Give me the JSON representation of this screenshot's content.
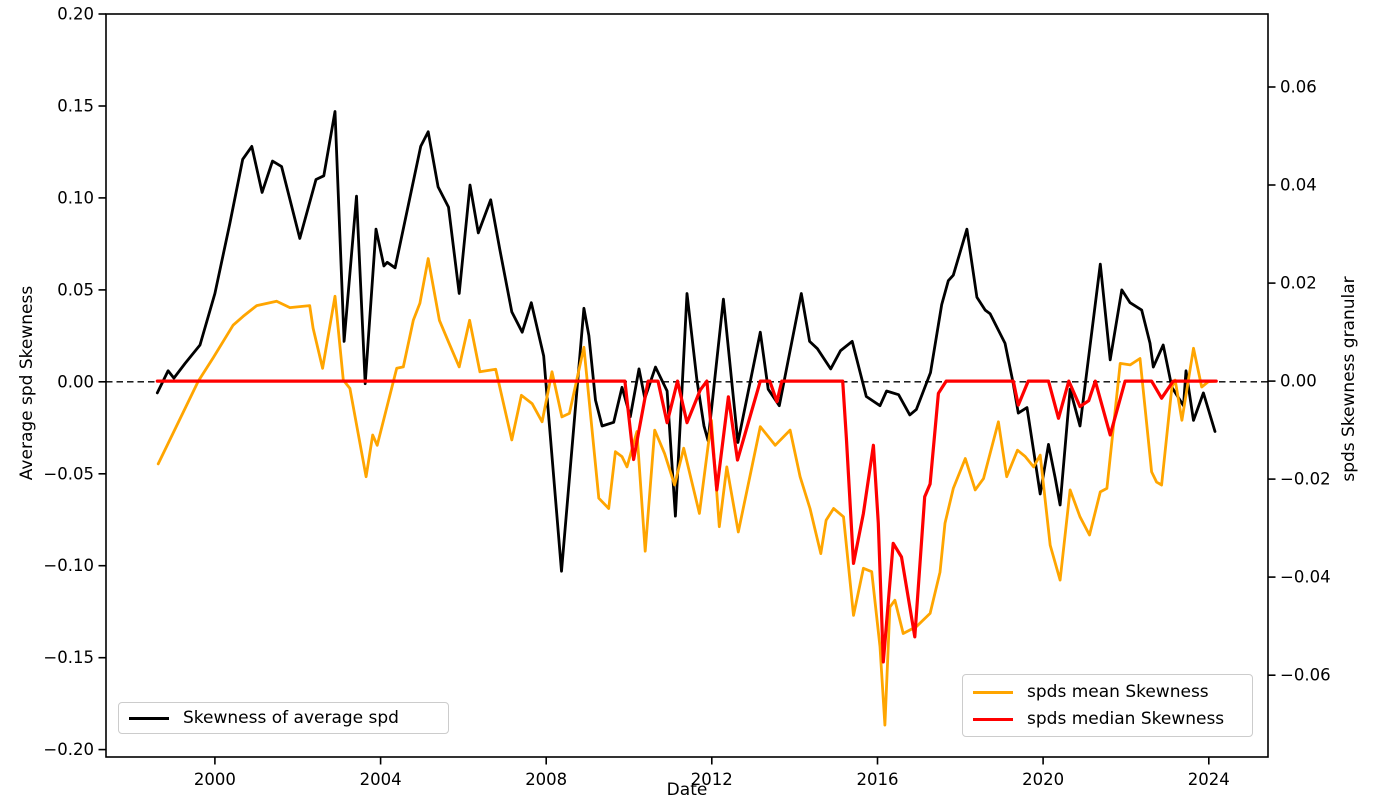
{
  "chart_data": {
    "type": "line",
    "title": "",
    "xlabel": "Date",
    "ylabel_left": "Average spd Skewness",
    "ylabel_right": "spds Skewness granular",
    "xlim": [
      1997.37,
      2025.43
    ],
    "ylim_left": [
      -0.204,
      0.2
    ],
    "ylim_right": [
      -0.0767,
      0.0749
    ],
    "grid": false,
    "background": "#ffffff",
    "spine_color": "#000000",
    "zero_line": {
      "value": 0,
      "style": "dashed",
      "color": "#000000"
    },
    "x_ticks": [
      {
        "v": 2000,
        "label": "2000"
      },
      {
        "v": 2004,
        "label": "2004"
      },
      {
        "v": 2008,
        "label": "2008"
      },
      {
        "v": 2012,
        "label": "2012"
      },
      {
        "v": 2016,
        "label": "2016"
      },
      {
        "v": 2020,
        "label": "2020"
      },
      {
        "v": 2024,
        "label": "2024"
      }
    ],
    "y_ticks_left": [
      {
        "v": 0.2,
        "label": "0.20"
      },
      {
        "v": 0.15,
        "label": "0.15"
      },
      {
        "v": 0.1,
        "label": "0.10"
      },
      {
        "v": 0.05,
        "label": "0.05"
      },
      {
        "v": 0.0,
        "label": "0.00"
      },
      {
        "v": -0.05,
        "label": "−0.05"
      },
      {
        "v": -0.1,
        "label": "−0.10"
      },
      {
        "v": -0.15,
        "label": "−0.15"
      },
      {
        "v": -0.2,
        "label": "−0.20"
      }
    ],
    "y_ticks_right": [
      {
        "v": 0.06,
        "label": "0.06"
      },
      {
        "v": 0.04,
        "label": "0.04"
      },
      {
        "v": 0.02,
        "label": "0.02"
      },
      {
        "v": 0.0,
        "label": "0.00"
      },
      {
        "v": -0.02,
        "label": "−0.02"
      },
      {
        "v": -0.04,
        "label": "−0.04"
      },
      {
        "v": -0.06,
        "label": "−0.06"
      }
    ],
    "series": [
      {
        "name": "Skewness of average spd",
        "color": "#000000",
        "axis": "left",
        "linewidth": 2.8,
        "points": [
          [
            1998.61,
            -0.006
          ],
          [
            1998.87,
            0.006
          ],
          [
            1999.01,
            0.002
          ],
          [
            1999.28,
            0.01
          ],
          [
            1999.64,
            0.02
          ],
          [
            2000.0,
            0.048
          ],
          [
            2000.36,
            0.086
          ],
          [
            2000.67,
            0.121
          ],
          [
            2000.89,
            0.128
          ],
          [
            2001.14,
            0.103
          ],
          [
            2001.39,
            0.12
          ],
          [
            2001.61,
            0.117
          ],
          [
            2002.05,
            0.078
          ],
          [
            2002.44,
            0.11
          ],
          [
            2002.63,
            0.112
          ],
          [
            2002.9,
            0.147
          ],
          [
            2003.12,
            0.022
          ],
          [
            2003.42,
            0.101
          ],
          [
            2003.63,
            -0.001
          ],
          [
            2003.89,
            0.083
          ],
          [
            2004.08,
            0.063
          ],
          [
            2004.16,
            0.065
          ],
          [
            2004.35,
            0.062
          ],
          [
            2004.97,
            0.128
          ],
          [
            2005.15,
            0.136
          ],
          [
            2005.39,
            0.106
          ],
          [
            2005.64,
            0.095
          ],
          [
            2005.9,
            0.048
          ],
          [
            2006.16,
            0.107
          ],
          [
            2006.36,
            0.081
          ],
          [
            2006.66,
            0.099
          ],
          [
            2006.88,
            0.072
          ],
          [
            2007.17,
            0.038
          ],
          [
            2007.42,
            0.027
          ],
          [
            2007.64,
            0.043
          ],
          [
            2007.94,
            0.014
          ],
          [
            2008.37,
            -0.103
          ],
          [
            2008.91,
            0.04
          ],
          [
            2009.03,
            0.025
          ],
          [
            2009.19,
            -0.01
          ],
          [
            2009.35,
            -0.024
          ],
          [
            2009.63,
            -0.022
          ],
          [
            2009.83,
            -0.003
          ],
          [
            2010.03,
            -0.019
          ],
          [
            2010.24,
            0.007
          ],
          [
            2010.38,
            -0.009
          ],
          [
            2010.64,
            0.008
          ],
          [
            2010.92,
            -0.005
          ],
          [
            2011.12,
            -0.073
          ],
          [
            2011.4,
            0.048
          ],
          [
            2011.64,
            0.001
          ],
          [
            2011.81,
            -0.024
          ],
          [
            2011.91,
            -0.032
          ],
          [
            2012.28,
            0.045
          ],
          [
            2012.63,
            -0.033
          ],
          [
            2013.17,
            0.027
          ],
          [
            2013.36,
            -0.004
          ],
          [
            2013.63,
            -0.013
          ],
          [
            2014.16,
            0.048
          ],
          [
            2014.36,
            0.022
          ],
          [
            2014.55,
            0.018
          ],
          [
            2014.87,
            0.007
          ],
          [
            2015.11,
            0.017
          ],
          [
            2015.39,
            0.022
          ],
          [
            2015.73,
            -0.008
          ],
          [
            2016.06,
            -0.013
          ],
          [
            2016.22,
            -0.005
          ],
          [
            2016.51,
            -0.007
          ],
          [
            2016.78,
            -0.018
          ],
          [
            2016.94,
            -0.015
          ],
          [
            2017.28,
            0.005
          ],
          [
            2017.55,
            0.042
          ],
          [
            2017.71,
            0.055
          ],
          [
            2017.83,
            0.058
          ],
          [
            2018.16,
            0.083
          ],
          [
            2018.4,
            0.046
          ],
          [
            2018.6,
            0.039
          ],
          [
            2018.72,
            0.037
          ],
          [
            2019.08,
            0.021
          ],
          [
            2019.27,
            0.0
          ],
          [
            2019.4,
            -0.017
          ],
          [
            2019.61,
            -0.014
          ],
          [
            2019.93,
            -0.061
          ],
          [
            2020.13,
            -0.034
          ],
          [
            2020.29,
            -0.052
          ],
          [
            2020.41,
            -0.067
          ],
          [
            2020.65,
            -0.004
          ],
          [
            2020.89,
            -0.024
          ],
          [
            2021.38,
            0.064
          ],
          [
            2021.62,
            0.012
          ],
          [
            2021.9,
            0.05
          ],
          [
            2022.1,
            0.043
          ],
          [
            2022.38,
            0.039
          ],
          [
            2022.58,
            0.021
          ],
          [
            2022.66,
            0.008
          ],
          [
            2022.9,
            0.02
          ],
          [
            2023.11,
            -0.003
          ],
          [
            2023.39,
            -0.013
          ],
          [
            2023.45,
            0.006
          ],
          [
            2023.63,
            -0.021
          ],
          [
            2023.87,
            -0.006
          ],
          [
            2024.15,
            -0.027
          ]
        ]
      },
      {
        "name": "spds mean Skewness",
        "color": "#FFA500",
        "axis": "right",
        "linewidth": 2.8,
        "points": [
          [
            1998.63,
            -0.0169
          ],
          [
            1999.6,
            0.0
          ],
          [
            1999.96,
            0.0048
          ],
          [
            2000.44,
            0.0114
          ],
          [
            2000.68,
            0.0132
          ],
          [
            2001.01,
            0.0154
          ],
          [
            2001.49,
            0.0163
          ],
          [
            2001.81,
            0.015
          ],
          [
            2002.29,
            0.0154
          ],
          [
            2002.37,
            0.0108
          ],
          [
            2002.6,
            0.0026
          ],
          [
            2002.9,
            0.0173
          ],
          [
            2003.1,
            0.0002
          ],
          [
            2003.26,
            -0.0015
          ],
          [
            2003.65,
            -0.0195
          ],
          [
            2003.81,
            -0.011
          ],
          [
            2003.92,
            -0.0131
          ],
          [
            2004.39,
            0.0026
          ],
          [
            2004.55,
            0.0029
          ],
          [
            2004.79,
            0.0124
          ],
          [
            2004.95,
            0.0159
          ],
          [
            2005.15,
            0.025
          ],
          [
            2005.42,
            0.0124
          ],
          [
            2005.64,
            0.008
          ],
          [
            2005.9,
            0.0029
          ],
          [
            2006.15,
            0.0124
          ],
          [
            2006.4,
            0.0019
          ],
          [
            2006.78,
            0.0024
          ],
          [
            2007.17,
            -0.012
          ],
          [
            2007.4,
            -0.0029
          ],
          [
            2007.66,
            -0.0046
          ],
          [
            2007.9,
            -0.0083
          ],
          [
            2008.14,
            0.0019
          ],
          [
            2008.38,
            -0.0073
          ],
          [
            2008.56,
            -0.0066
          ],
          [
            2008.91,
            0.0069
          ],
          [
            2009.27,
            -0.0239
          ],
          [
            2009.51,
            -0.026
          ],
          [
            2009.67,
            -0.0144
          ],
          [
            2009.83,
            -0.0154
          ],
          [
            2009.95,
            -0.0175
          ],
          [
            2010.19,
            -0.0103
          ],
          [
            2010.39,
            -0.0347
          ],
          [
            2010.62,
            -0.01
          ],
          [
            2010.86,
            -0.0148
          ],
          [
            2011.1,
            -0.0212
          ],
          [
            2011.32,
            -0.0137
          ],
          [
            2011.7,
            -0.027
          ],
          [
            2011.99,
            -0.008
          ],
          [
            2012.18,
            -0.0297
          ],
          [
            2012.36,
            -0.0175
          ],
          [
            2012.64,
            -0.0308
          ],
          [
            2013.17,
            -0.0093
          ],
          [
            2013.53,
            -0.0131
          ],
          [
            2013.89,
            -0.01
          ],
          [
            2014.13,
            -0.0195
          ],
          [
            2014.37,
            -0.026
          ],
          [
            2014.63,
            -0.0352
          ],
          [
            2014.76,
            -0.0284
          ],
          [
            2014.94,
            -0.026
          ],
          [
            2015.18,
            -0.0277
          ],
          [
            2015.42,
            -0.0478
          ],
          [
            2015.66,
            -0.0382
          ],
          [
            2015.86,
            -0.0389
          ],
          [
            2016.06,
            -0.0542
          ],
          [
            2016.18,
            -0.0702
          ],
          [
            2016.3,
            -0.0461
          ],
          [
            2016.42,
            -0.0447
          ],
          [
            2016.62,
            -0.0515
          ],
          [
            2016.94,
            -0.0501
          ],
          [
            2017.27,
            -0.0474
          ],
          [
            2017.51,
            -0.039
          ],
          [
            2017.63,
            -0.029
          ],
          [
            2017.83,
            -0.0219
          ],
          [
            2018.12,
            -0.0158
          ],
          [
            2018.36,
            -0.0222
          ],
          [
            2018.56,
            -0.0199
          ],
          [
            2018.92,
            -0.0083
          ],
          [
            2019.12,
            -0.0195
          ],
          [
            2019.38,
            -0.0141
          ],
          [
            2019.57,
            -0.0154
          ],
          [
            2019.77,
            -0.0175
          ],
          [
            2019.93,
            -0.0151
          ],
          [
            2020.17,
            -0.0335
          ],
          [
            2020.41,
            -0.0406
          ],
          [
            2020.65,
            -0.0222
          ],
          [
            2020.89,
            -0.0277
          ],
          [
            2021.12,
            -0.0314
          ],
          [
            2021.38,
            -0.0226
          ],
          [
            2021.54,
            -0.0219
          ],
          [
            2021.86,
            0.0036
          ],
          [
            2022.1,
            0.0033
          ],
          [
            2022.34,
            0.0046
          ],
          [
            2022.62,
            -0.0185
          ],
          [
            2022.74,
            -0.0206
          ],
          [
            2022.86,
            -0.0212
          ],
          [
            2023.11,
            -0.0012
          ],
          [
            2023.19,
            0.0002
          ],
          [
            2023.35,
            -0.008
          ],
          [
            2023.63,
            0.0067
          ],
          [
            2023.83,
            -0.0012
          ],
          [
            2023.99,
            -0.0001
          ],
          [
            2024.18,
            0.0
          ]
        ]
      },
      {
        "name": "spds median Skewness",
        "color": "#FF0000",
        "axis": "right",
        "linewidth": 3.2,
        "points": [
          [
            1998.61,
            0.0
          ],
          [
            2009.9,
            0.0
          ],
          [
            2010.11,
            -0.016
          ],
          [
            2010.46,
            0.0
          ],
          [
            2010.7,
            0.0
          ],
          [
            2010.92,
            -0.0085
          ],
          [
            2011.17,
            0.0
          ],
          [
            2011.4,
            -0.0085
          ],
          [
            2011.72,
            -0.0018
          ],
          [
            2011.88,
            0.0
          ],
          [
            2012.12,
            -0.0222
          ],
          [
            2012.4,
            -0.0032
          ],
          [
            2012.62,
            -0.0161
          ],
          [
            2013.17,
            0.0
          ],
          [
            2013.4,
            0.0
          ],
          [
            2013.57,
            -0.0042
          ],
          [
            2013.69,
            0.0
          ],
          [
            2015.16,
            0.0
          ],
          [
            2015.25,
            -0.0117
          ],
          [
            2015.42,
            -0.0372
          ],
          [
            2015.66,
            -0.027
          ],
          [
            2015.9,
            -0.0131
          ],
          [
            2016.02,
            -0.029
          ],
          [
            2016.14,
            -0.0573
          ],
          [
            2016.38,
            -0.0331
          ],
          [
            2016.58,
            -0.0359
          ],
          [
            2016.9,
            -0.0522
          ],
          [
            2017.14,
            -0.0236
          ],
          [
            2017.27,
            -0.021
          ],
          [
            2017.47,
            -0.0025
          ],
          [
            2017.66,
            0.0
          ],
          [
            2019.28,
            0.0
          ],
          [
            2019.4,
            -0.0049
          ],
          [
            2019.64,
            0.0
          ],
          [
            2020.13,
            0.0
          ],
          [
            2020.37,
            -0.0076
          ],
          [
            2020.62,
            0.0
          ],
          [
            2020.89,
            -0.0052
          ],
          [
            2021.1,
            -0.004
          ],
          [
            2021.26,
            0.0
          ],
          [
            2021.62,
            -0.011
          ],
          [
            2021.98,
            0.0
          ],
          [
            2022.62,
            0.0
          ],
          [
            2022.86,
            -0.0035
          ],
          [
            2023.14,
            0.0
          ],
          [
            2024.18,
            0.0
          ]
        ]
      }
    ],
    "legend_left": {
      "position": "lower left",
      "entries": [
        {
          "label": "Skewness of average spd",
          "color": "#000000",
          "series": 0
        }
      ]
    },
    "legend_right": {
      "position": "lower right",
      "entries": [
        {
          "label": "spds mean Skewness",
          "color": "#FFA500",
          "series": 1
        },
        {
          "label": "spds median Skewness",
          "color": "#FF0000",
          "series": 2
        }
      ]
    }
  }
}
